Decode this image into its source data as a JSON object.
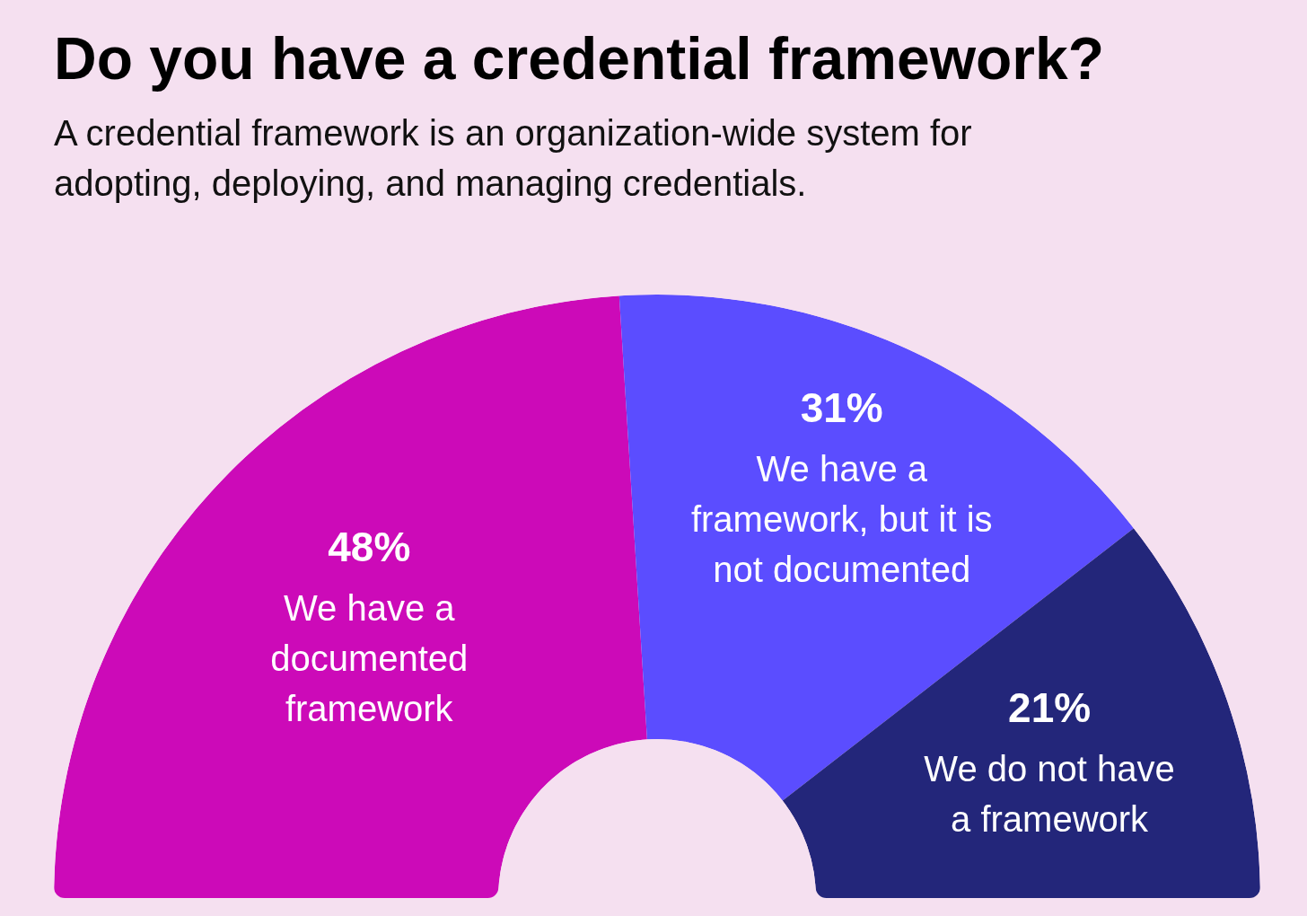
{
  "chart_data": {
    "type": "donut",
    "title": "Do you have a credential framework?",
    "subtitle": "A credential framework is an organization-wide system for adopting, deploying, and managing credentials.",
    "categories": [
      "We have a documented framework",
      "We have a framework, but it is not documented",
      "We do not have a framework"
    ],
    "values": [
      48,
      31,
      21
    ],
    "colors": [
      "#cc0ab8",
      "#5b4dff",
      "#23267a"
    ],
    "value_labels": [
      "48%",
      "31%",
      "21%"
    ]
  }
}
